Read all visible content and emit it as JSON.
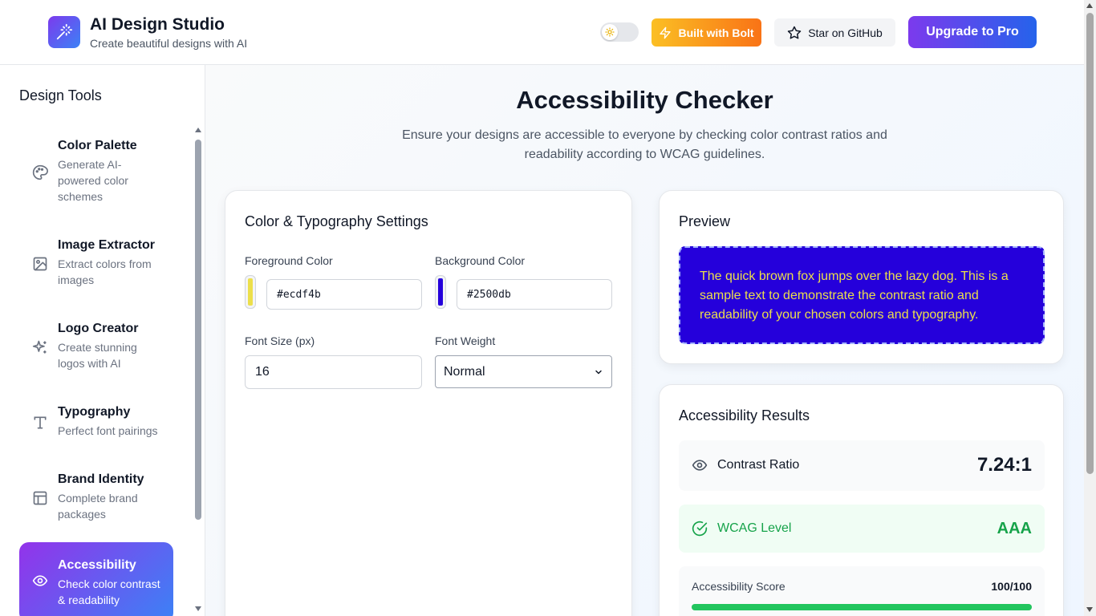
{
  "header": {
    "title": "AI Design Studio",
    "subtitle": "Create beautiful designs with AI",
    "logo_icon": "magic-wand-icon",
    "theme_toggle_icon": "sun-icon",
    "bolt_label": "Built with Bolt",
    "github_label": "Star on GitHub",
    "upgrade_label": "Upgrade to Pro"
  },
  "sidebar": {
    "title": "Design Tools",
    "items": [
      {
        "label": "Color Palette",
        "desc": "Generate AI-powered color schemes",
        "icon": "palette-icon"
      },
      {
        "label": "Image Extractor",
        "desc": "Extract colors from images",
        "icon": "image-icon"
      },
      {
        "label": "Logo Creator",
        "desc": "Create stunning logos with AI",
        "icon": "sparkles-icon"
      },
      {
        "label": "Typography",
        "desc": "Perfect font pairings",
        "icon": "type-icon"
      },
      {
        "label": "Brand Identity",
        "desc": "Complete brand packages",
        "icon": "layout-icon"
      },
      {
        "label": "Accessibility",
        "desc": "Check color contrast & readability",
        "icon": "eye-icon"
      }
    ],
    "active_index": 5
  },
  "main": {
    "title": "Accessibility Checker",
    "subtitle": "Ensure your designs are accessible to everyone by checking color contrast ratios and readability according to WCAG guidelines."
  },
  "settings": {
    "title": "Color & Typography Settings",
    "foreground_label": "Foreground Color",
    "foreground_value": "#ecdf4b",
    "background_label": "Background Color",
    "background_value": "#2500db",
    "font_size_label": "Font Size (px)",
    "font_size_value": "16",
    "font_weight_label": "Font Weight",
    "font_weight_value": "Normal"
  },
  "preview": {
    "title": "Preview",
    "text": "The quick brown fox jumps over the lazy dog. This is a sample text to demonstrate the contrast ratio and readability of your chosen colors and typography."
  },
  "results": {
    "title": "Accessibility Results",
    "contrast_label": "Contrast Ratio",
    "contrast_value": "7.24:1",
    "wcag_label": "WCAG Level",
    "wcag_value": "AAA",
    "score_label": "Accessibility Score",
    "score_value": "100/100",
    "score_fraction": 1.0
  },
  "colors": {
    "accent_purple": "#7c3aed",
    "accent_blue": "#2563eb",
    "success": "#16a34a"
  }
}
